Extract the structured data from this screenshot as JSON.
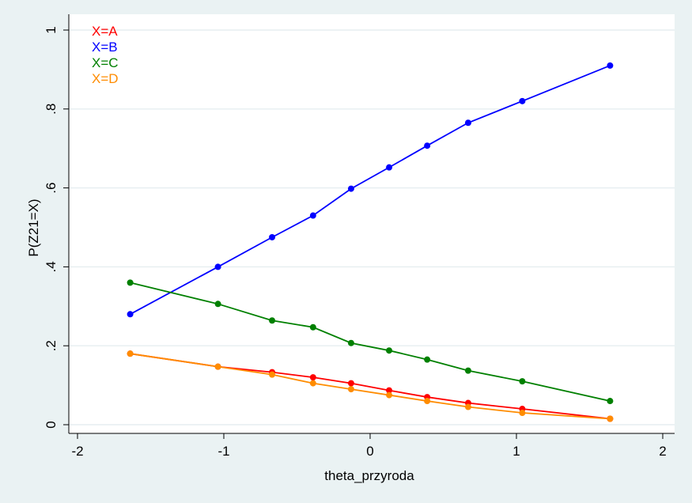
{
  "chart_data": {
    "type": "line",
    "title": "",
    "xlabel": "theta_przyroda",
    "ylabel": "P(Z21=X)",
    "xlim": [
      -2,
      2
    ],
    "ylim": [
      0,
      1
    ],
    "x_ticks": [
      -2,
      -1,
      0,
      1,
      2
    ],
    "x_tick_labels": [
      "-2",
      "-1",
      "0",
      "1",
      "2"
    ],
    "y_ticks": [
      0,
      0.2,
      0.4,
      0.6,
      0.8,
      1
    ],
    "y_tick_labels": [
      "0",
      ".2",
      ".4",
      ".6",
      ".8",
      "1"
    ],
    "grid": true,
    "legend_position": "top-left",
    "x": [
      -1.64,
      -1.04,
      -0.67,
      -0.39,
      -0.13,
      0.13,
      0.39,
      0.67,
      1.04,
      1.64
    ],
    "series": [
      {
        "name": "X=A",
        "color": "#ff0000",
        "values": [
          0.18,
          0.147,
          0.133,
          0.12,
          0.105,
          0.087,
          0.07,
          0.055,
          0.04,
          0.015
        ]
      },
      {
        "name": "X=B",
        "color": "#0000ff",
        "values": [
          0.28,
          0.4,
          0.475,
          0.53,
          0.598,
          0.652,
          0.707,
          0.765,
          0.82,
          0.91
        ]
      },
      {
        "name": "X=C",
        "color": "#008000",
        "values": [
          0.36,
          0.306,
          0.264,
          0.247,
          0.207,
          0.188,
          0.165,
          0.137,
          0.11,
          0.06
        ]
      },
      {
        "name": "X=D",
        "color": "#ff8c00",
        "values": [
          0.18,
          0.147,
          0.127,
          0.105,
          0.09,
          0.075,
          0.06,
          0.045,
          0.03,
          0.015
        ]
      }
    ]
  }
}
